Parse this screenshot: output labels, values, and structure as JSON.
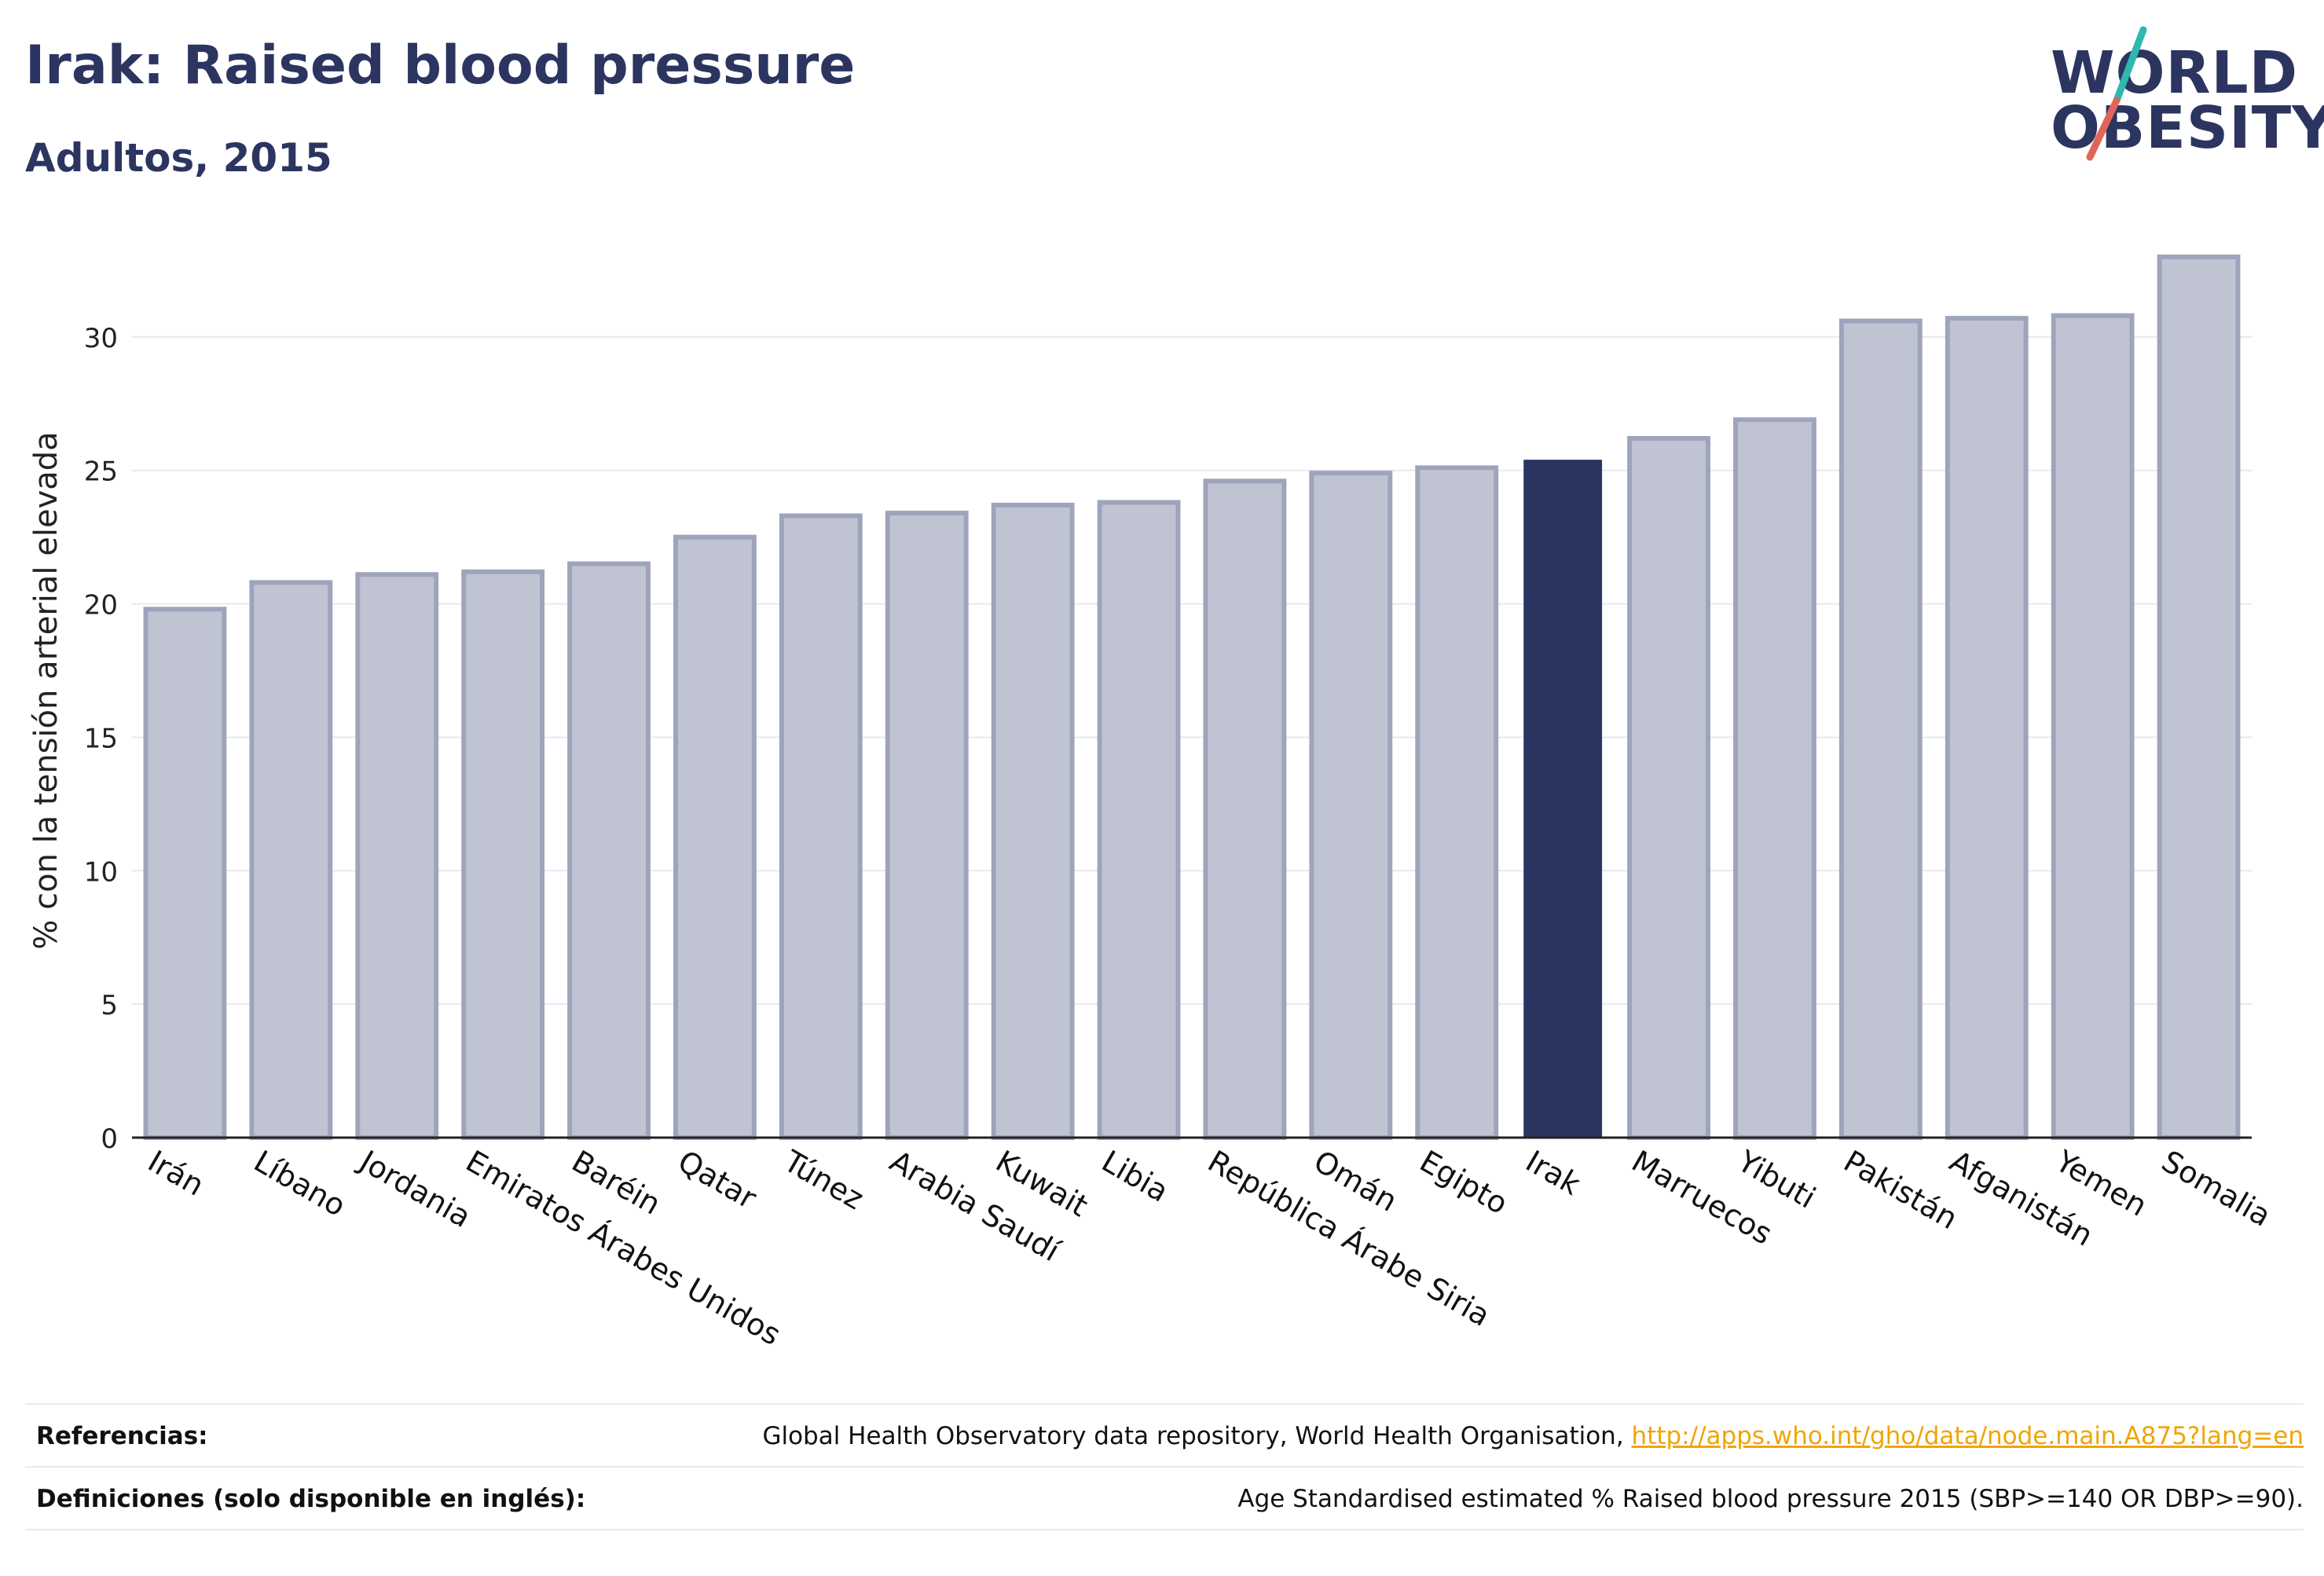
{
  "header": {
    "title": "Irak: Raised blood pressure",
    "subtitle": "Adultos, 2015"
  },
  "logo": {
    "line1": "WORLD",
    "line2": "OBESITY"
  },
  "chart_data": {
    "type": "bar",
    "ylabel": "% con la tensión arterial elevada",
    "ylim": [
      0,
      33.5
    ],
    "yticks": [
      0,
      5,
      10,
      15,
      20,
      25,
      30
    ],
    "grid": true,
    "categories": [
      "Irán",
      "Líbano",
      "Jordania",
      "Emiratos Árabes Unidos",
      "Baréin",
      "Qatar",
      "Túnez",
      "Arabia Saudí",
      "Kuwait",
      "Libia",
      "República Árabe Siria",
      "Omán",
      "Egipto",
      "Irak",
      "Marruecos",
      "Yibuti",
      "Pakistán",
      "Afganistán",
      "Yemen",
      "Somalia"
    ],
    "values": [
      19.8,
      20.8,
      21.1,
      21.2,
      21.5,
      22.5,
      23.3,
      23.4,
      23.7,
      23.8,
      24.6,
      24.9,
      25.1,
      25.4,
      26.2,
      26.9,
      30.6,
      30.7,
      30.8,
      33.0
    ],
    "highlight": "Irak",
    "colors": {
      "bar": "#c0c4d2",
      "bar_border": "#9ea4bb",
      "highlight": "#2a3461"
    }
  },
  "references": {
    "refs_label": "Referencias:",
    "refs_text": "Global Health Observatory data repository, World Health Organisation, ",
    "refs_link": "http://apps.who.int/gho/data/node.main.A875?lang=en",
    "defs_label": "Definiciones (solo disponible en inglés):",
    "defs_text": "Age Standardised estimated % Raised blood pressure 2015 (SBP>=140 OR DBP>=90)."
  }
}
